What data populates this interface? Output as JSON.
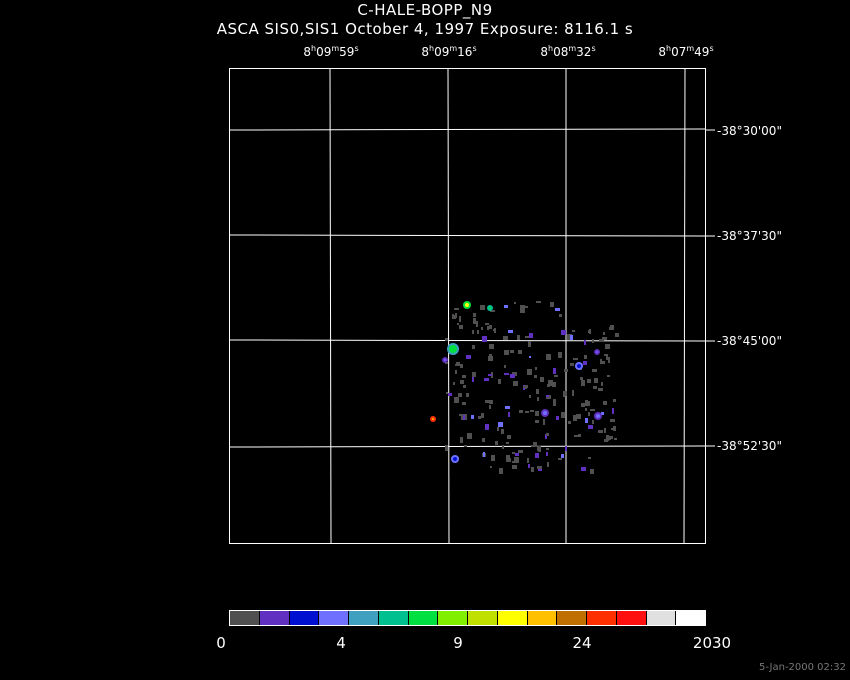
{
  "title": "C-HALE-BOPP_N9",
  "subtitle": "ASCA SIS0,SIS1 October 4, 1997 Exposure: 8116.1 s",
  "ra_ticks": [
    {
      "h": "8",
      "m": "09",
      "s": "59"
    },
    {
      "h": "8",
      "m": "09",
      "s": "16"
    },
    {
      "h": "8",
      "m": "08",
      "s": "32"
    },
    {
      "h": "8",
      "m": "07",
      "s": "49"
    }
  ],
  "dec_ticks": [
    "-38°30'00\"",
    "-38°37'30\"",
    "-38°45'00\"",
    "-38°52'30\""
  ],
  "colorbar": {
    "colors": [
      "#505050",
      "#6030c0",
      "#0010d0",
      "#7070ff",
      "#40a0c0",
      "#00c090",
      "#00e040",
      "#80f000",
      "#c0e000",
      "#ffff00",
      "#ffc000",
      "#c07000",
      "#ff3000",
      "#ff1010",
      "#e0e0e0",
      "#ffffff"
    ],
    "tick_labels": [
      "0",
      "4",
      "9",
      "24",
      "2030"
    ]
  },
  "timestamp": "5-Jan-2000 02:32"
}
